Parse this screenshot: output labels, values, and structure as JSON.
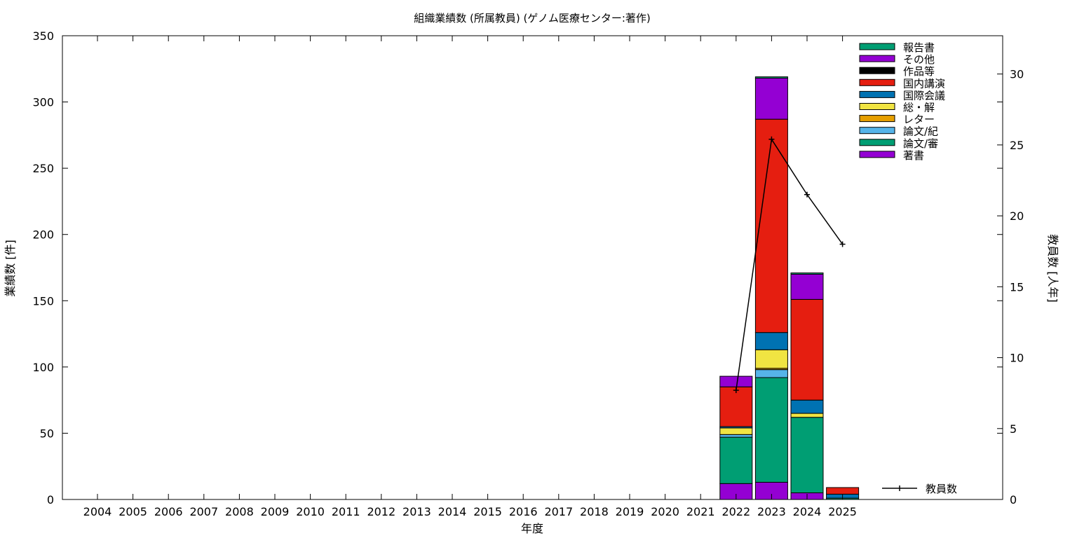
{
  "chart_data": {
    "type": "bar",
    "stacked": true,
    "title": "組織業績数 (所属教員) (ゲノム医療センター:著作)",
    "xlabel": "年度",
    "ylabel": "業績数 [件]",
    "y2label": "教員数 [人年]",
    "ylim": [
      0,
      350
    ],
    "y2lim": [
      0,
      32.7
    ],
    "yticks": [
      0,
      50,
      100,
      150,
      200,
      250,
      300,
      350
    ],
    "y2ticks": [
      0,
      5,
      10,
      15,
      20,
      25,
      30
    ],
    "grid": false,
    "legend_position": "top-right",
    "categories": [
      "2004",
      "2005",
      "2006",
      "2007",
      "2008",
      "2009",
      "2010",
      "2011",
      "2012",
      "2013",
      "2014",
      "2015",
      "2016",
      "2017",
      "2018",
      "2019",
      "2020",
      "2021",
      "2022",
      "2023",
      "2024",
      "2025"
    ],
    "series": [
      {
        "name": "著書",
        "color": "#9400d3",
        "values": [
          0,
          0,
          0,
          0,
          0,
          0,
          0,
          0,
          0,
          0,
          0,
          0,
          0,
          0,
          0,
          0,
          0,
          0,
          12,
          13,
          5,
          0
        ]
      },
      {
        "name": "論文/審",
        "color": "#009e73",
        "values": [
          0,
          0,
          0,
          0,
          0,
          0,
          0,
          0,
          0,
          0,
          0,
          0,
          0,
          0,
          0,
          0,
          0,
          0,
          35,
          79,
          57,
          1
        ]
      },
      {
        "name": "論文/紀",
        "color": "#56b4e9",
        "values": [
          0,
          0,
          0,
          0,
          0,
          0,
          0,
          0,
          0,
          0,
          0,
          0,
          0,
          0,
          0,
          0,
          0,
          0,
          2,
          6,
          0,
          0
        ]
      },
      {
        "name": "レター",
        "color": "#e69f00",
        "values": [
          0,
          0,
          0,
          0,
          0,
          0,
          0,
          0,
          0,
          0,
          0,
          0,
          0,
          0,
          0,
          0,
          0,
          0,
          0,
          1,
          0,
          0
        ]
      },
      {
        "name": "総・解",
        "color": "#f0e442",
        "values": [
          0,
          0,
          0,
          0,
          0,
          0,
          0,
          0,
          0,
          0,
          0,
          0,
          0,
          0,
          0,
          0,
          0,
          0,
          5,
          14,
          3,
          0
        ]
      },
      {
        "name": "国際会議",
        "color": "#0072b2",
        "values": [
          0,
          0,
          0,
          0,
          0,
          0,
          0,
          0,
          0,
          0,
          0,
          0,
          0,
          0,
          0,
          0,
          0,
          0,
          1,
          13,
          10,
          3
        ]
      },
      {
        "name": "国内講演",
        "color": "#e51e10",
        "values": [
          0,
          0,
          0,
          0,
          0,
          0,
          0,
          0,
          0,
          0,
          0,
          0,
          0,
          0,
          0,
          0,
          0,
          0,
          30,
          161,
          76,
          5
        ]
      },
      {
        "name": "作品等",
        "color": "#000000",
        "values": [
          0,
          0,
          0,
          0,
          0,
          0,
          0,
          0,
          0,
          0,
          0,
          0,
          0,
          0,
          0,
          0,
          0,
          0,
          0,
          0,
          0,
          0
        ]
      },
      {
        "name": "その他",
        "color": "#9400d3",
        "values": [
          0,
          0,
          0,
          0,
          0,
          0,
          0,
          0,
          0,
          0,
          0,
          0,
          0,
          0,
          0,
          0,
          0,
          0,
          8,
          31,
          19,
          0
        ]
      },
      {
        "name": "報告書",
        "color": "#009e73",
        "values": [
          0,
          0,
          0,
          0,
          0,
          0,
          0,
          0,
          0,
          0,
          0,
          0,
          0,
          0,
          0,
          0,
          0,
          0,
          0,
          1,
          1,
          0
        ]
      }
    ],
    "line": {
      "name": "教員数",
      "color": "#000000",
      "x": [
        "2022",
        "2023",
        "2024",
        "2025"
      ],
      "values": [
        7.7,
        25.4,
        21.5,
        18.0
      ]
    }
  }
}
